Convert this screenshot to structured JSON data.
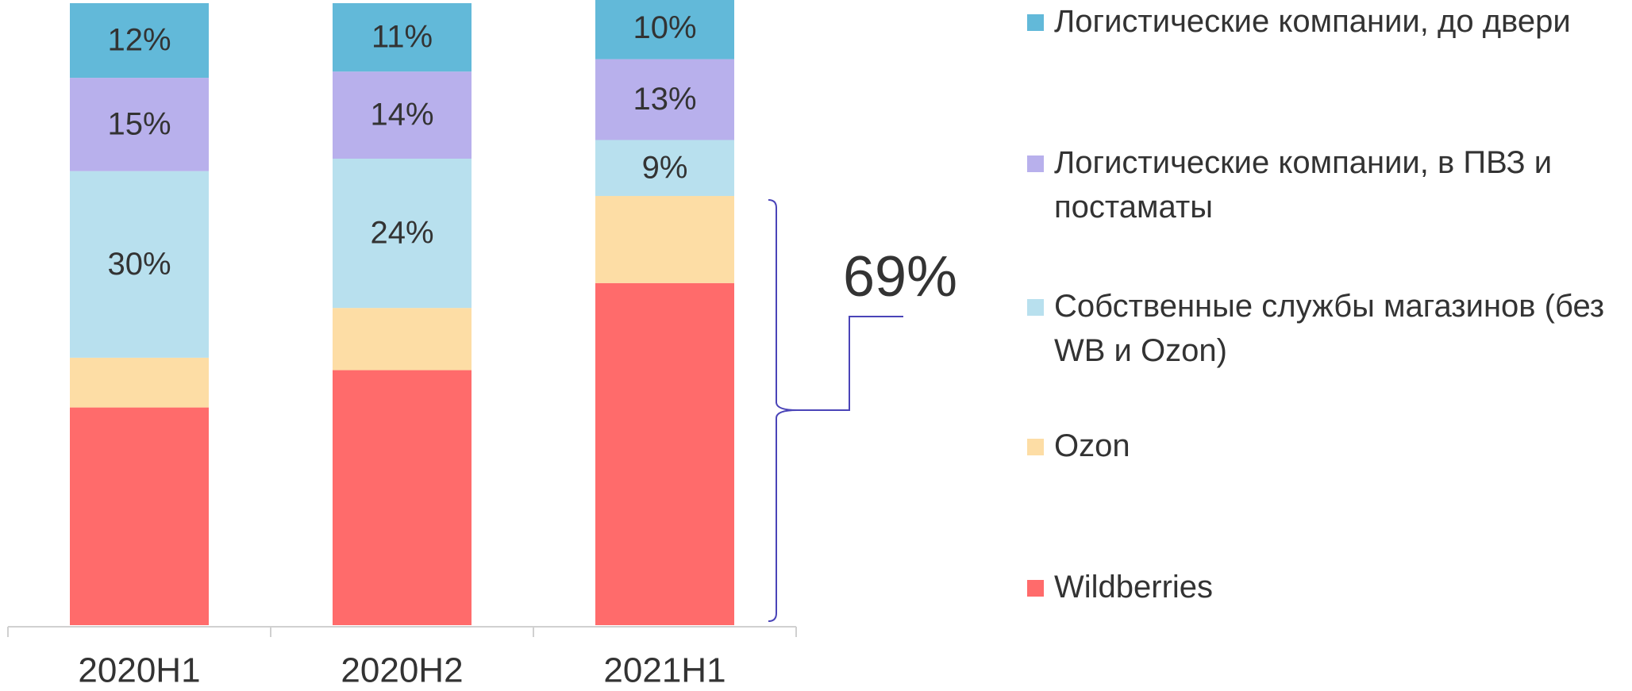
{
  "chart_data": {
    "type": "stacked_bar",
    "categories": [
      "2020H1",
      "2020H2",
      "2021H1"
    ],
    "ylim": [
      0,
      100
    ],
    "series": [
      {
        "name": "Wildberries",
        "color": "#ff6b6b",
        "values": [
          35,
          41,
          55
        ],
        "value_labels": [
          null,
          null,
          null
        ]
      },
      {
        "name": "Ozon",
        "color": "#fddda5",
        "values": [
          8,
          10,
          14
        ],
        "value_labels": [
          null,
          null,
          null
        ]
      },
      {
        "name": "Собственные службы магазинов (без WB и Ozon)",
        "color": "#b8e0ee",
        "values": [
          30,
          24,
          9
        ],
        "value_labels": [
          "30%",
          "24%",
          "9%"
        ]
      },
      {
        "name": "Логистические компании, в ПВЗ и постаматы",
        "color": "#b8b0ec",
        "values": [
          15,
          14,
          13
        ],
        "value_labels": [
          "15%",
          "14%",
          "13%"
        ]
      },
      {
        "name": "Логистические компании, до двери",
        "color": "#62b9d9",
        "values": [
          12,
          11,
          10
        ],
        "value_labels": [
          "12%",
          "11%",
          "10%"
        ]
      }
    ],
    "annotation": "69%"
  }
}
